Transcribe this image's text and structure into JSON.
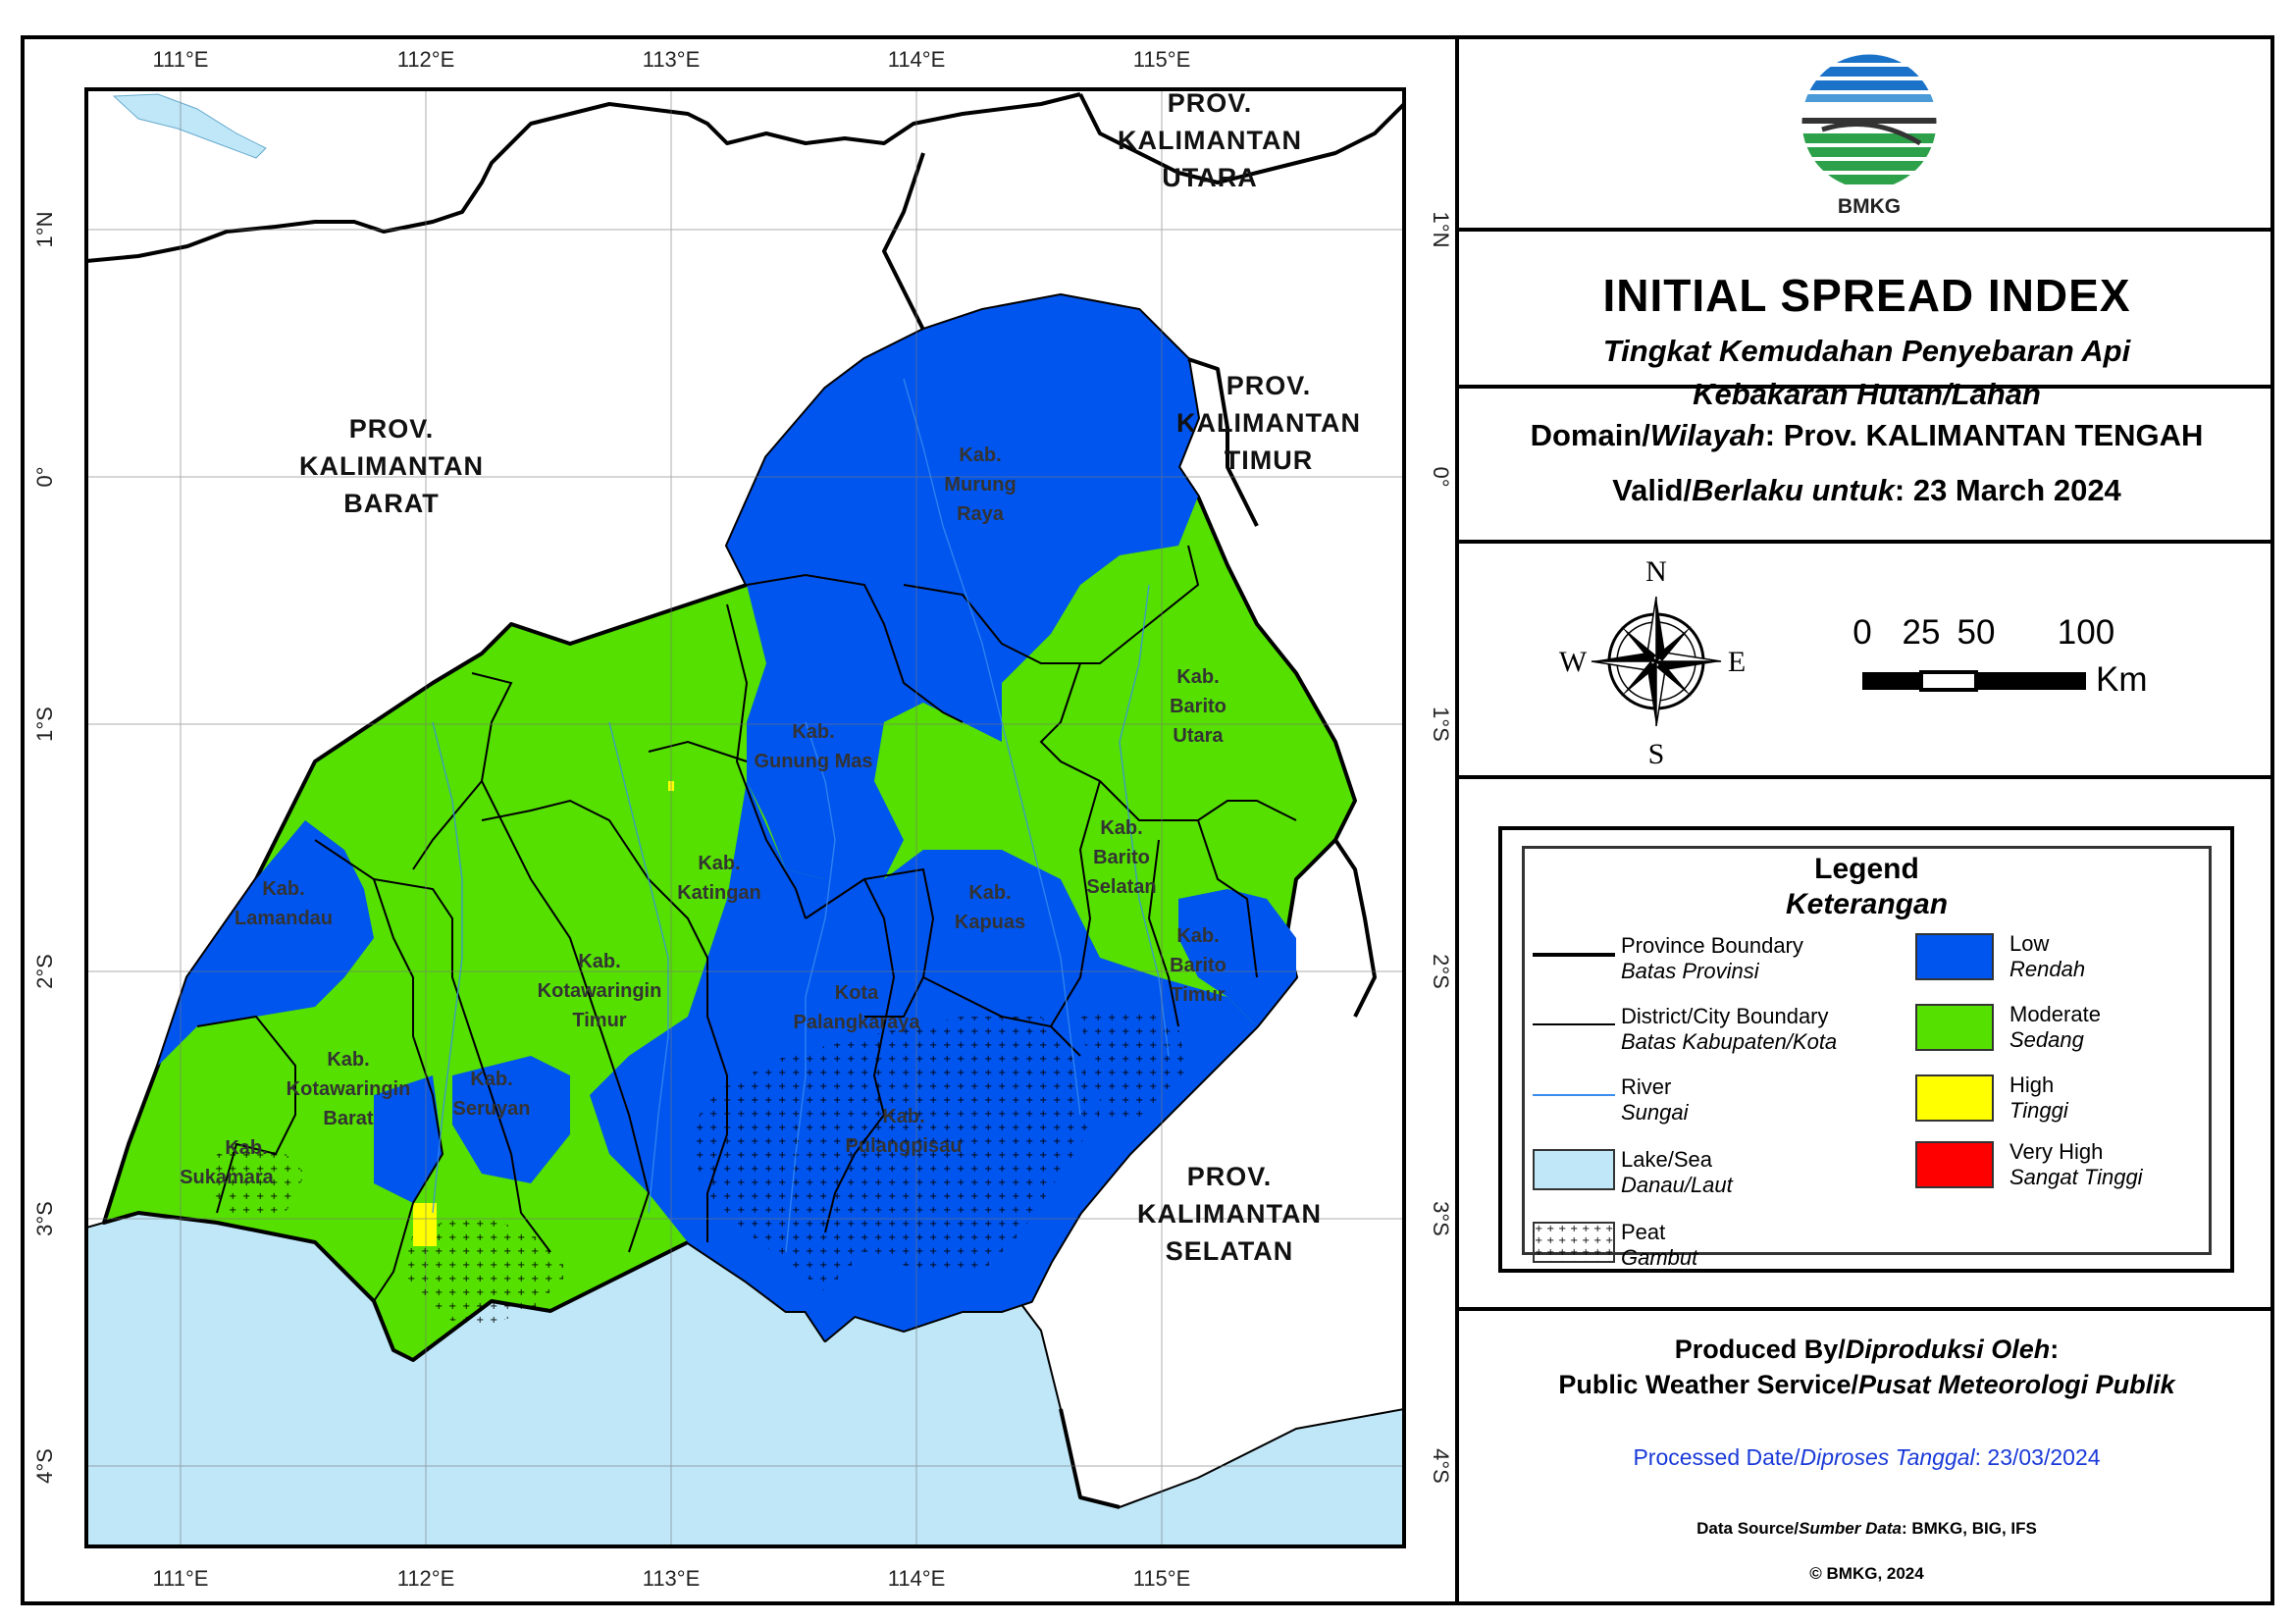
{
  "map": {
    "lon_labels": [
      "111°E",
      "112°E",
      "113°E",
      "114°E",
      "115°E"
    ],
    "lat_labels": [
      "1°N",
      "0°",
      "1°S",
      "2°S",
      "3°S",
      "4°S"
    ],
    "provinces": {
      "kaltara": [
        "PROV.",
        "KALIMANTAN",
        "UTARA"
      ],
      "kalbar": [
        "PROV.",
        "KALIMANTAN",
        "BARAT"
      ],
      "kaltim": [
        "PROV.",
        "KALIMANTAN",
        "TIMUR"
      ],
      "kalsel": [
        "PROV.",
        "KALIMANTAN",
        "SELATAN"
      ]
    },
    "regencies": {
      "murung_raya": [
        "Kab.",
        "Murung",
        "Raya"
      ],
      "barito_utara": [
        "Kab.",
        "Barito",
        "Utara"
      ],
      "gunung_mas": [
        "Kab.",
        "Gunung Mas"
      ],
      "katingan": [
        "Kab.",
        "Katingan"
      ],
      "lamandau": [
        "Kab.",
        "Lamandau"
      ],
      "kapuas": [
        "Kab.",
        "Kapuas"
      ],
      "barito_selatan": [
        "Kab.",
        "Barito",
        "Selatan"
      ],
      "barito_timur": [
        "Kab.",
        "Barito",
        "Timur"
      ],
      "kotim": [
        "Kab.",
        "Kotawaringin",
        "Timur"
      ],
      "palangkaraya": [
        "Kota",
        "Palangkaraya"
      ],
      "kobar": [
        "Kab.",
        "Kotawaringin",
        "Barat"
      ],
      "seruyan": [
        "Kab.",
        "Seruyan"
      ],
      "sukamara": [
        "Kab.",
        "Sukamara"
      ],
      "pulang_pisau": [
        "Kab.",
        "Pulangpisau"
      ]
    }
  },
  "header": {
    "logo_text": "BMKG",
    "title": "INITIAL SPREAD INDEX",
    "subtitle_line1": "Tingkat Kemudahan Penyebaran Api",
    "subtitle_line2": "Kebakaran Hutan/Lahan"
  },
  "domain": {
    "label_en": "Domain/",
    "label_id": "Wilayah",
    "value": ": Prov. KALIMANTAN TENGAH",
    "valid_en": "Valid/",
    "valid_id": "Berlaku untuk",
    "valid_value": ": 23 March 2024"
  },
  "compass": {
    "n": "N",
    "s": "S",
    "e": "E",
    "w": "W"
  },
  "scale": {
    "labels": [
      "0",
      "25",
      "50",
      "100"
    ],
    "unit": "Km"
  },
  "legend": {
    "title": "Legend",
    "subtitle": "Keterangan",
    "items": [
      {
        "en": "Province Boundary",
        "id": "Batas Provinsi"
      },
      {
        "en": "District/City Boundary",
        "id": "Batas Kabupaten/Kota"
      },
      {
        "en": "River",
        "id": "Sungai"
      },
      {
        "en": "Lake/Sea",
        "id": "Danau/Laut"
      },
      {
        "en": "Peat",
        "id": "Gambut"
      },
      {
        "en": "Low",
        "id": "Rendah"
      },
      {
        "en": "Moderate",
        "id": "Sedang"
      },
      {
        "en": "High",
        "id": "Tinggi"
      },
      {
        "en": "Very High",
        "id": "Sangat Tinggi"
      }
    ],
    "colors": {
      "low": "#0055ee",
      "moderate": "#55e000",
      "high": "#ffff00",
      "very_high": "#ff0000",
      "sea": "#bfe7f8",
      "river": "#3a8cf0"
    }
  },
  "credits": {
    "produced_en": "Produced By/",
    "produced_id": "Diproduksi Oleh",
    "produced_colon": ":",
    "service_en": "Public Weather Service/",
    "service_id": "Pusat Meteorologi Publik",
    "processed_en": "Processed Date/",
    "processed_id": "Diproses Tanggal",
    "processed_value": ": 23/03/2024",
    "source_en": "Data Source/",
    "source_id": "Sumber Data",
    "source_value": ": BMKG, BIG, IFS",
    "copyright": "© BMKG, 2024"
  }
}
